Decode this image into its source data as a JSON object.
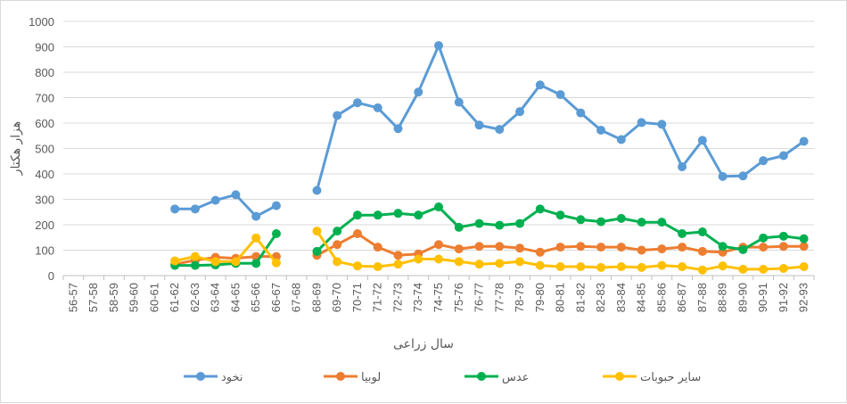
{
  "chart_data": {
    "type": "line",
    "title": "",
    "xlabel": "سال زراعی",
    "ylabel": "هزار هکتار",
    "ylim": [
      0,
      1000
    ],
    "yticks": [
      0,
      100,
      200,
      300,
      400,
      500,
      600,
      700,
      800,
      900,
      1000
    ],
    "grid": "horizontal",
    "legend_position": "bottom",
    "categories": [
      "56-57",
      "57-58",
      "58-59",
      "59-60",
      "60-61",
      "61-62",
      "62-63",
      "63-64",
      "64-65",
      "65-66",
      "66-67",
      "67-68",
      "68-69",
      "69-70",
      "70-71",
      "71-72",
      "72-73",
      "73-74",
      "74-75",
      "75-76",
      "76-77",
      "77-78",
      "78-79",
      "79-80",
      "80-81",
      "81-82",
      "82-83",
      "83-84",
      "84-85",
      "85-86",
      "86-87",
      "87-88",
      "88-89",
      "89-90",
      "90-91",
      "91-92",
      "92-93"
    ],
    "series": [
      {
        "name": "نخود",
        "color": "#5b9bd5",
        "values": [
          null,
          null,
          null,
          null,
          null,
          262,
          262,
          296,
          318,
          233,
          275,
          null,
          335,
          630,
          680,
          660,
          578,
          722,
          905,
          682,
          592,
          575,
          645,
          750,
          712,
          640,
          572,
          535,
          602,
          595,
          428,
          532,
          390,
          392,
          452,
          472,
          528
        ]
      },
      {
        "name": "لوبیا",
        "color": "#ed7d31",
        "values": [
          null,
          null,
          null,
          null,
          null,
          45,
          60,
          72,
          68,
          75,
          75,
          null,
          80,
          122,
          165,
          112,
          80,
          85,
          122,
          105,
          115,
          115,
          108,
          92,
          112,
          115,
          112,
          112,
          100,
          105,
          112,
          95,
          92,
          112,
          112,
          115,
          115
        ]
      },
      {
        "name": "عدس",
        "color": "#00b050",
        "values": [
          null,
          null,
          null,
          null,
          null,
          40,
          40,
          42,
          48,
          48,
          165,
          null,
          95,
          175,
          238,
          238,
          245,
          238,
          270,
          190,
          205,
          198,
          205,
          262,
          238,
          220,
          212,
          225,
          210,
          210,
          165,
          172,
          115,
          102,
          148,
          155,
          145
        ]
      },
      {
        "name": "سایر حبوبات",
        "color": "#ffc000",
        "values": [
          null,
          null,
          null,
          null,
          null,
          58,
          75,
          55,
          55,
          148,
          50,
          null,
          175,
          55,
          38,
          35,
          45,
          65,
          65,
          55,
          45,
          48,
          55,
          40,
          35,
          35,
          32,
          35,
          32,
          40,
          35,
          22,
          38,
          25,
          25,
          28,
          35
        ]
      }
    ]
  }
}
